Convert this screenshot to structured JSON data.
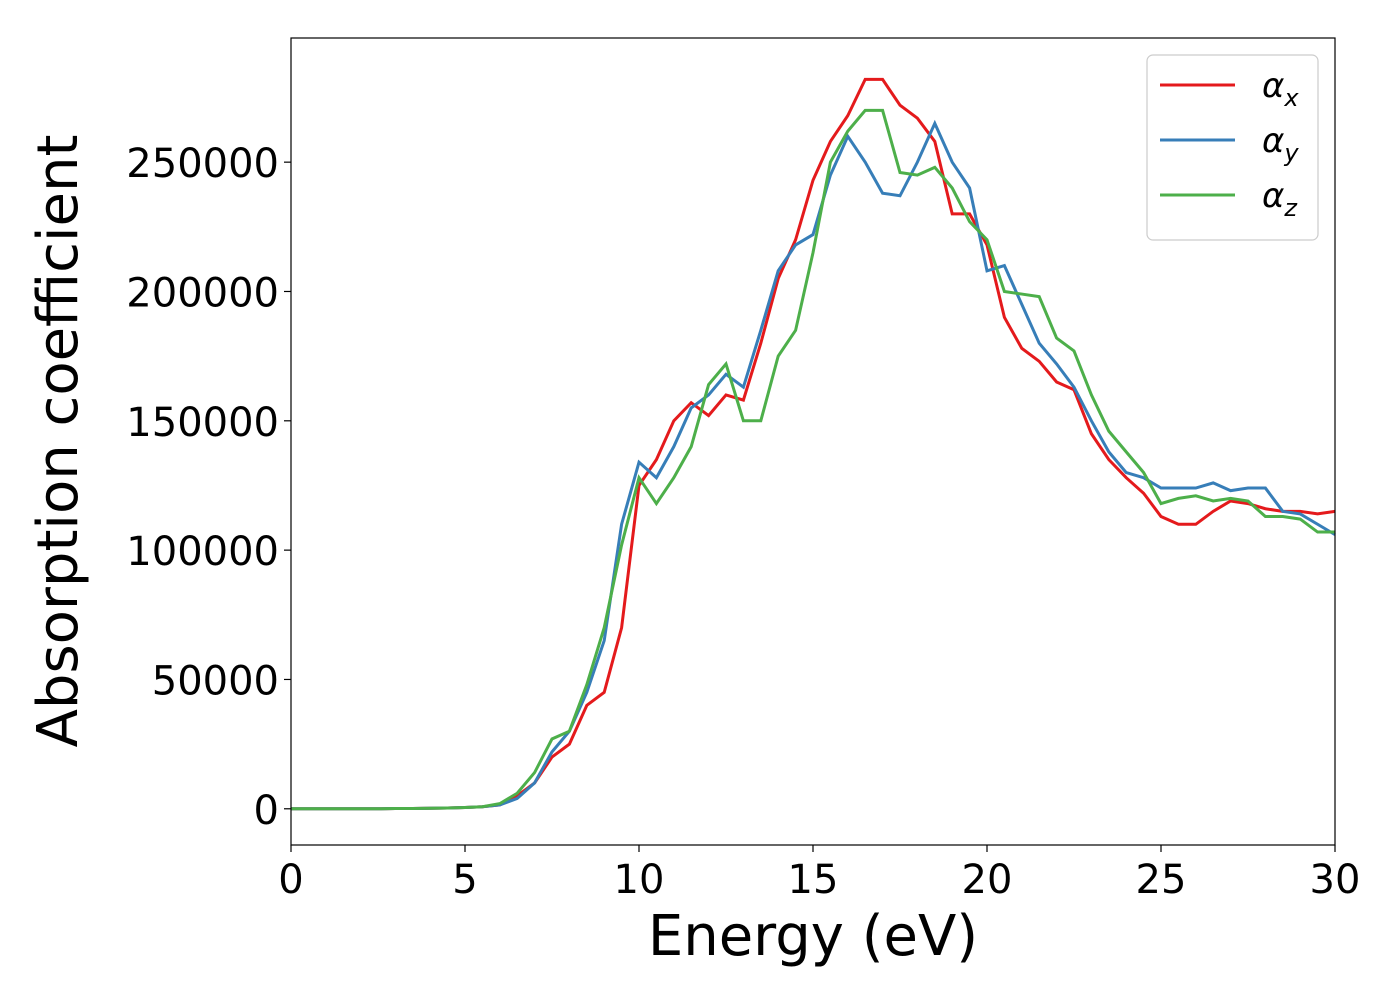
{
  "chart_data": {
    "type": "line",
    "xlabel": "Energy (eV)",
    "ylabel": "Absorption coefficient",
    "x": [
      0,
      0.5,
      1,
      1.5,
      2,
      2.5,
      3,
      3.5,
      4,
      4.5,
      5,
      5.5,
      6,
      6.5,
      7,
      7.5,
      8,
      8.5,
      9,
      9.5,
      10,
      10.5,
      11,
      11.5,
      12,
      12.5,
      13,
      13.5,
      14,
      14.5,
      15,
      15.5,
      16,
      16.5,
      17,
      17.5,
      18,
      18.5,
      19,
      19.5,
      20,
      20.5,
      21,
      21.5,
      22,
      22.5,
      23,
      23.5,
      24,
      24.5,
      25,
      25.5,
      26,
      26.5,
      27,
      27.5,
      28,
      28.5,
      29,
      29.5,
      30
    ],
    "series": [
      {
        "name": "αx",
        "color": "#e41a1c",
        "values": [
          0,
          0,
          0,
          0,
          0,
          0,
          100,
          100,
          200,
          300,
          500,
          800,
          1500,
          5000,
          10000,
          20000,
          25000,
          40000,
          45000,
          70000,
          125000,
          135000,
          150000,
          157000,
          152000,
          160000,
          158000,
          180000,
          205000,
          220000,
          243000,
          258000,
          268000,
          282000,
          282000,
          272000,
          267000,
          258000,
          230000,
          230000,
          218000,
          190000,
          178000,
          173000,
          165000,
          162000,
          145000,
          135000,
          128000,
          122000,
          113000,
          110000,
          110000,
          115000,
          119000,
          118000,
          116000,
          115000,
          115000,
          114000,
          115000
        ]
      },
      {
        "name": "αy",
        "color": "#377eb8",
        "values": [
          0,
          0,
          0,
          0,
          0,
          0,
          100,
          100,
          200,
          300,
          500,
          800,
          1500,
          4000,
          10000,
          22000,
          30000,
          45000,
          65000,
          110000,
          134000,
          128000,
          140000,
          155000,
          160000,
          168000,
          163000,
          185000,
          208000,
          218000,
          222000,
          245000,
          260000,
          250000,
          238000,
          237000,
          250000,
          265000,
          250000,
          240000,
          208000,
          210000,
          195000,
          180000,
          172000,
          163000,
          150000,
          138000,
          130000,
          128000,
          124000,
          124000,
          124000,
          126000,
          123000,
          124000,
          124000,
          115000,
          114000,
          110000,
          106000
        ]
      },
      {
        "name": "αz",
        "color": "#4daf4a",
        "values": [
          0,
          0,
          0,
          0,
          0,
          0,
          100,
          100,
          200,
          300,
          500,
          800,
          2000,
          6000,
          14000,
          27000,
          30000,
          48000,
          70000,
          102000,
          128000,
          118000,
          128000,
          140000,
          164000,
          172000,
          150000,
          150000,
          175000,
          185000,
          215000,
          250000,
          262000,
          270000,
          270000,
          246000,
          245000,
          248000,
          240000,
          227000,
          220000,
          200000,
          199000,
          198000,
          182000,
          177000,
          160000,
          146000,
          138000,
          130000,
          118000,
          120000,
          121000,
          119000,
          120000,
          119000,
          113000,
          113000,
          112000,
          107000,
          107000
        ]
      }
    ],
    "xlim": [
      0,
      30
    ],
    "ylim": [
      -14000,
      298000
    ],
    "xticks": [
      0,
      5,
      10,
      15,
      20,
      25,
      30
    ],
    "yticks": [
      0,
      50000,
      100000,
      150000,
      200000,
      250000
    ],
    "grid": false,
    "legend": "upper right"
  }
}
